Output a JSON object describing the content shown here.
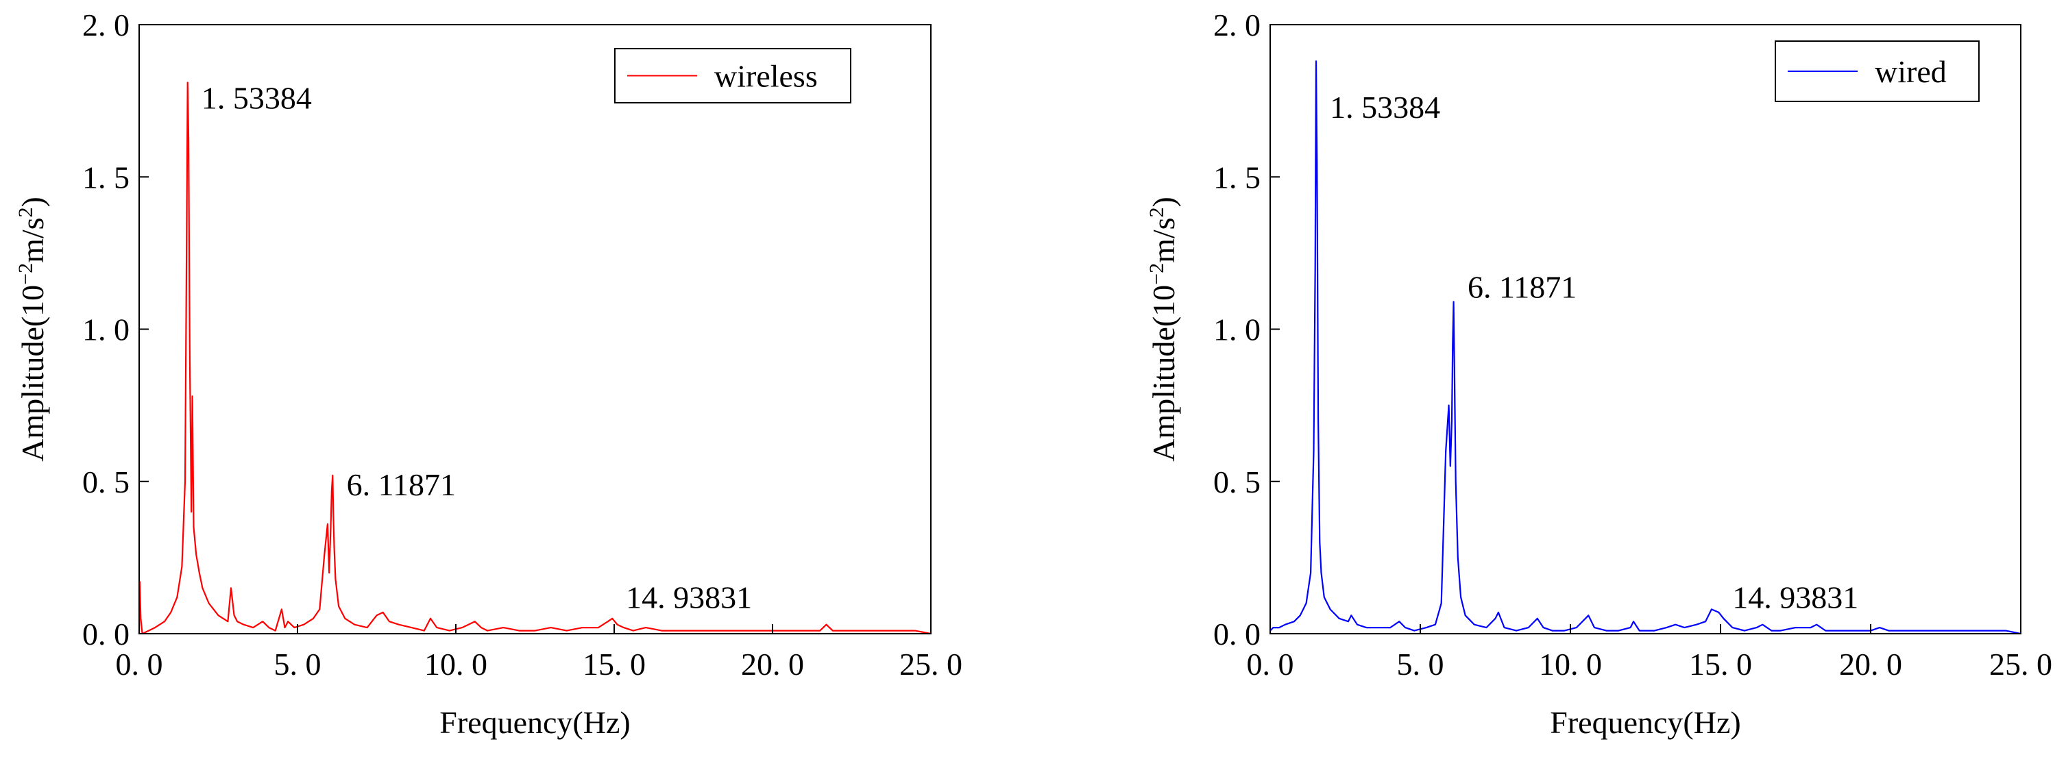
{
  "chart_data": [
    {
      "type": "line",
      "id": "left",
      "xlabel": "Frequency(Hz)",
      "ylabel_main": "Amplitude(10",
      "ylabel_sup1": "−2",
      "ylabel_mid": "m/s",
      "ylabel_sup2": "2",
      "ylabel_end": ")",
      "xlim": [
        0,
        25
      ],
      "ylim": [
        0,
        2.0
      ],
      "xticks": [
        0,
        5,
        10,
        15,
        20,
        25
      ],
      "xtick_labels": [
        "0. 0",
        "5. 0",
        "10. 0",
        "15. 0",
        "20. 0",
        "25. 0"
      ],
      "yticks": [
        0,
        0.5,
        1.0,
        1.5,
        2.0
      ],
      "ytick_labels": [
        "0. 0",
        "0. 5",
        "1. 0",
        "1. 5",
        "2. 0"
      ],
      "legend": {
        "label": "wireless",
        "placement": "top-right"
      },
      "color": "#ff0000",
      "annotations": [
        {
          "text": "1. 53384",
          "x": 1.53384,
          "y": 1.76
        },
        {
          "text": "6. 11871",
          "x": 6.11871,
          "y": 0.49
        },
        {
          "text": "14. 93831",
          "x": 14.93831,
          "y": 0.12
        }
      ],
      "series": [
        {
          "name": "wireless",
          "x": [
            0.0,
            0.02,
            0.05,
            0.1,
            0.3,
            0.5,
            0.8,
            1.0,
            1.2,
            1.35,
            1.45,
            1.5,
            1.53,
            1.56,
            1.6,
            1.65,
            1.68,
            1.72,
            1.8,
            1.9,
            2.0,
            2.2,
            2.5,
            2.8,
            2.9,
            3.0,
            3.1,
            3.3,
            3.6,
            3.9,
            4.1,
            4.3,
            4.5,
            4.6,
            4.7,
            4.9,
            5.2,
            5.5,
            5.7,
            5.85,
            5.95,
            6.0,
            6.05,
            6.08,
            6.11,
            6.13,
            6.16,
            6.2,
            6.3,
            6.5,
            6.8,
            7.2,
            7.5,
            7.7,
            7.9,
            8.2,
            8.6,
            9.0,
            9.2,
            9.4,
            9.8,
            10.2,
            10.6,
            10.8,
            11.0,
            11.5,
            12.0,
            12.5,
            13.0,
            13.5,
            14.0,
            14.5,
            14.8,
            14.94,
            15.1,
            15.3,
            15.6,
            16.0,
            16.5,
            17.0,
            17.5,
            18.0,
            18.5,
            19.0,
            19.5,
            20.0,
            20.5,
            21.0,
            21.5,
            21.7,
            21.9,
            22.2,
            22.6,
            23.0,
            23.5,
            24.0,
            24.5,
            25.0
          ],
          "y": [
            0.0,
            0.17,
            0.05,
            0.0,
            0.01,
            0.02,
            0.04,
            0.07,
            0.12,
            0.22,
            0.5,
            1.3,
            1.81,
            1.62,
            0.9,
            0.4,
            0.78,
            0.35,
            0.26,
            0.2,
            0.15,
            0.1,
            0.06,
            0.04,
            0.15,
            0.06,
            0.04,
            0.03,
            0.02,
            0.04,
            0.02,
            0.01,
            0.08,
            0.02,
            0.04,
            0.02,
            0.03,
            0.05,
            0.08,
            0.26,
            0.36,
            0.2,
            0.35,
            0.47,
            0.52,
            0.4,
            0.28,
            0.18,
            0.09,
            0.05,
            0.03,
            0.02,
            0.06,
            0.07,
            0.04,
            0.03,
            0.02,
            0.01,
            0.05,
            0.02,
            0.01,
            0.02,
            0.04,
            0.02,
            0.01,
            0.02,
            0.01,
            0.01,
            0.02,
            0.01,
            0.02,
            0.02,
            0.04,
            0.05,
            0.03,
            0.02,
            0.01,
            0.02,
            0.01,
            0.01,
            0.01,
            0.01,
            0.01,
            0.01,
            0.01,
            0.01,
            0.01,
            0.01,
            0.01,
            0.03,
            0.01,
            0.01,
            0.01,
            0.01,
            0.01,
            0.01,
            0.01,
            0.0
          ]
        }
      ]
    },
    {
      "type": "line",
      "id": "right",
      "xlabel": "Frequency(Hz)",
      "ylabel_main": "Amplitude(10",
      "ylabel_sup1": "−2",
      "ylabel_mid": "m/s",
      "ylabel_sup2": "2",
      "ylabel_end": ")",
      "xlim": [
        0,
        25
      ],
      "ylim": [
        0,
        2.0
      ],
      "xticks": [
        0,
        5,
        10,
        15,
        20,
        25
      ],
      "xtick_labels": [
        "0. 0",
        "5. 0",
        "10. 0",
        "15. 0",
        "20. 0",
        "25. 0"
      ],
      "yticks": [
        0,
        0.5,
        1.0,
        1.5,
        2.0
      ],
      "ytick_labels": [
        "0. 0",
        "0. 5",
        "1. 0",
        "1. 5",
        "2. 0"
      ],
      "legend": {
        "label": "wired",
        "placement": "top-right"
      },
      "color": "#0000ff",
      "annotations": [
        {
          "text": "1. 53384",
          "x": 1.53384,
          "y": 1.73
        },
        {
          "text": "6. 11871",
          "x": 6.11871,
          "y": 1.14
        },
        {
          "text": "14. 93831",
          "x": 14.93831,
          "y": 0.12
        }
      ],
      "series": [
        {
          "name": "wired",
          "x": [
            0.0,
            0.1,
            0.3,
            0.5,
            0.8,
            1.0,
            1.2,
            1.35,
            1.45,
            1.5,
            1.53,
            1.56,
            1.6,
            1.65,
            1.7,
            1.8,
            2.0,
            2.3,
            2.6,
            2.7,
            2.9,
            3.2,
            3.6,
            4.0,
            4.3,
            4.5,
            4.8,
            5.2,
            5.5,
            5.7,
            5.85,
            5.95,
            6.0,
            6.05,
            6.08,
            6.11,
            6.14,
            6.18,
            6.25,
            6.35,
            6.5,
            6.8,
            7.2,
            7.5,
            7.6,
            7.8,
            8.2,
            8.6,
            8.9,
            9.1,
            9.4,
            9.8,
            10.2,
            10.5,
            10.6,
            10.8,
            11.2,
            11.6,
            12.0,
            12.1,
            12.3,
            12.8,
            13.2,
            13.5,
            13.8,
            14.2,
            14.5,
            14.7,
            14.94,
            15.1,
            15.4,
            15.8,
            16.2,
            16.4,
            16.7,
            17.0,
            17.5,
            18.0,
            18.2,
            18.5,
            19.0,
            19.5,
            20.0,
            20.3,
            20.6,
            21.0,
            21.5,
            22.0,
            22.5,
            23.0,
            23.5,
            24.0,
            24.5,
            25.0
          ],
          "y": [
            0.01,
            0.02,
            0.02,
            0.03,
            0.04,
            0.06,
            0.1,
            0.2,
            0.6,
            1.2,
            1.88,
            1.55,
            0.7,
            0.3,
            0.2,
            0.12,
            0.08,
            0.05,
            0.04,
            0.06,
            0.03,
            0.02,
            0.02,
            0.02,
            0.04,
            0.02,
            0.01,
            0.02,
            0.03,
            0.1,
            0.6,
            0.75,
            0.55,
            0.7,
            0.95,
            1.09,
            0.85,
            0.5,
            0.25,
            0.12,
            0.06,
            0.03,
            0.02,
            0.05,
            0.07,
            0.02,
            0.01,
            0.02,
            0.05,
            0.02,
            0.01,
            0.01,
            0.02,
            0.05,
            0.06,
            0.02,
            0.01,
            0.01,
            0.02,
            0.04,
            0.01,
            0.01,
            0.02,
            0.03,
            0.02,
            0.03,
            0.04,
            0.08,
            0.07,
            0.05,
            0.02,
            0.01,
            0.02,
            0.03,
            0.01,
            0.01,
            0.02,
            0.02,
            0.03,
            0.01,
            0.01,
            0.01,
            0.01,
            0.02,
            0.01,
            0.01,
            0.01,
            0.01,
            0.01,
            0.01,
            0.01,
            0.01,
            0.01,
            0.0
          ]
        }
      ]
    }
  ]
}
